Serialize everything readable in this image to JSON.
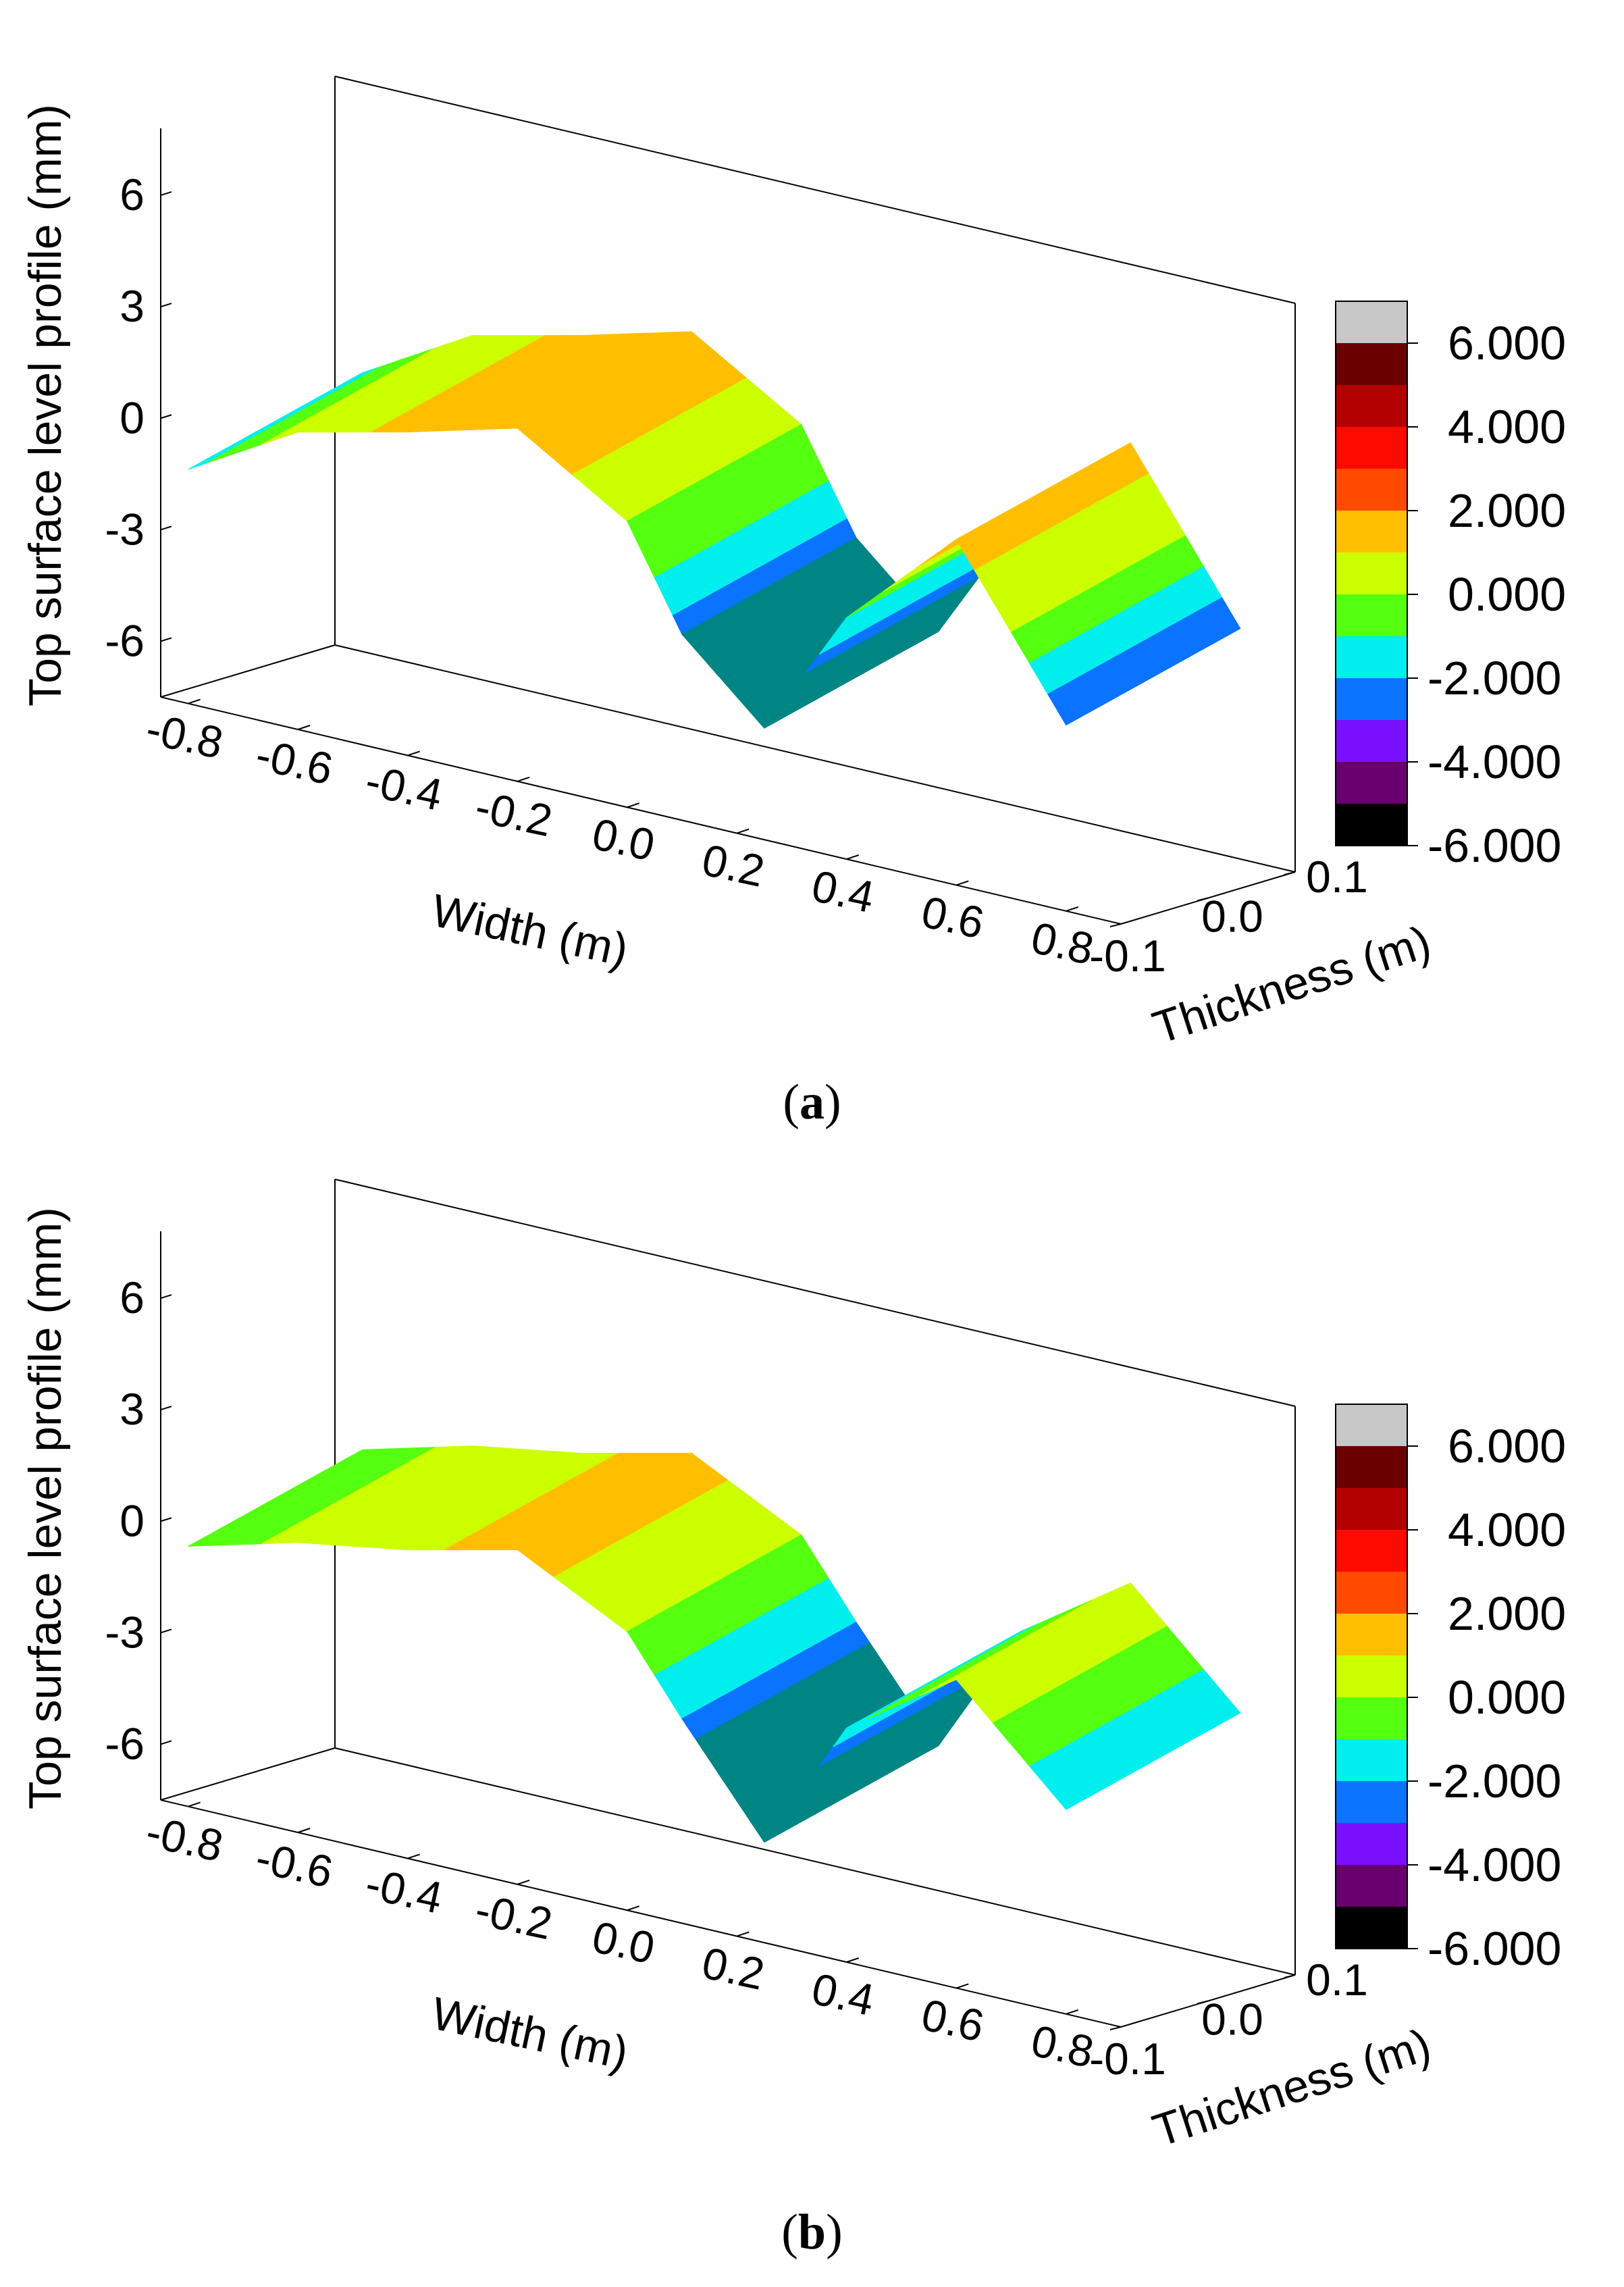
{
  "chart_data": [
    {
      "type": "surface3d",
      "panel": "a",
      "caption_letter": "a",
      "zlabel": "Top surface level profile (mm)",
      "xlabel": "Width (m)",
      "ylabel": "Thickness (m)",
      "z_ticks": [
        "6",
        "3",
        "0",
        "-3",
        "-6"
      ],
      "x_ticks": [
        "-0.8",
        "-0.6",
        "-0.4",
        "-0.2",
        "0.0",
        "0.2",
        "0.4",
        "0.6",
        "0.8"
      ],
      "y_ticks": [
        "-0.1",
        "0.0",
        "0.1"
      ],
      "colorbar": {
        "labels": [
          "6.000",
          "4.000",
          "2.000",
          "0.000",
          "-2.000",
          "-4.000",
          "-6.000"
        ],
        "colors": [
          "#c8c8c8",
          "#6b0000",
          "#b30000",
          "#ff0a00",
          "#ff4a00",
          "#ffbf00",
          "#ccff00",
          "#55ff10",
          "#00eeee",
          "#0a73ff",
          "#7a10ff",
          "#6a0070",
          "#000000"
        ]
      },
      "profile": [
        {
          "x": -0.8,
          "z": -1.2
        },
        {
          "x": -0.6,
          "z": 0.5
        },
        {
          "x": -0.4,
          "z": 1.2
        },
        {
          "x": -0.2,
          "z": 2.0
        },
        {
          "x": 0.0,
          "z": 0.2
        },
        {
          "x": 0.1,
          "z": -2.5
        },
        {
          "x": 0.25,
          "z": -4.5
        },
        {
          "x": 0.4,
          "z": -1.0
        },
        {
          "x": 0.6,
          "z": 1.8
        },
        {
          "x": 0.8,
          "z": -2.5
        }
      ]
    },
    {
      "type": "surface3d",
      "panel": "b",
      "caption_letter": "b",
      "zlabel": "Top surface level profile (mm)",
      "xlabel": "Width (m)",
      "ylabel": "Thickness (m)",
      "z_ticks": [
        "6",
        "3",
        "0",
        "-3",
        "-6"
      ],
      "x_ticks": [
        "-0.8",
        "-0.6",
        "-0.4",
        "-0.2",
        "0.0",
        "0.2",
        "0.4",
        "0.6",
        "0.8"
      ],
      "y_ticks": [
        "-0.1",
        "0.0",
        "0.1"
      ],
      "colorbar": {
        "labels": [
          "6.000",
          "4.000",
          "2.000",
          "0.000",
          "-2.000",
          "-4.000",
          "-6.000"
        ],
        "colors": [
          "#c8c8c8",
          "#6b0000",
          "#b30000",
          "#ff0a00",
          "#ff4a00",
          "#ffbf00",
          "#ccff00",
          "#55ff10",
          "#00eeee",
          "#0a73ff",
          "#7a10ff",
          "#6a0070",
          "#000000"
        ]
      },
      "profile": [
        {
          "x": -0.8,
          "z": -0.5
        },
        {
          "x": -0.6,
          "z": 0.3
        },
        {
          "x": -0.4,
          "z": 0.8
        },
        {
          "x": -0.2,
          "z": 1.5
        },
        {
          "x": 0.0,
          "z": 0.0
        },
        {
          "x": 0.1,
          "z": -2.0
        },
        {
          "x": 0.25,
          "z": -4.8
        },
        {
          "x": 0.4,
          "z": -1.2
        },
        {
          "x": 0.6,
          "z": 0.8
        },
        {
          "x": 0.8,
          "z": -2.0
        }
      ]
    }
  ]
}
